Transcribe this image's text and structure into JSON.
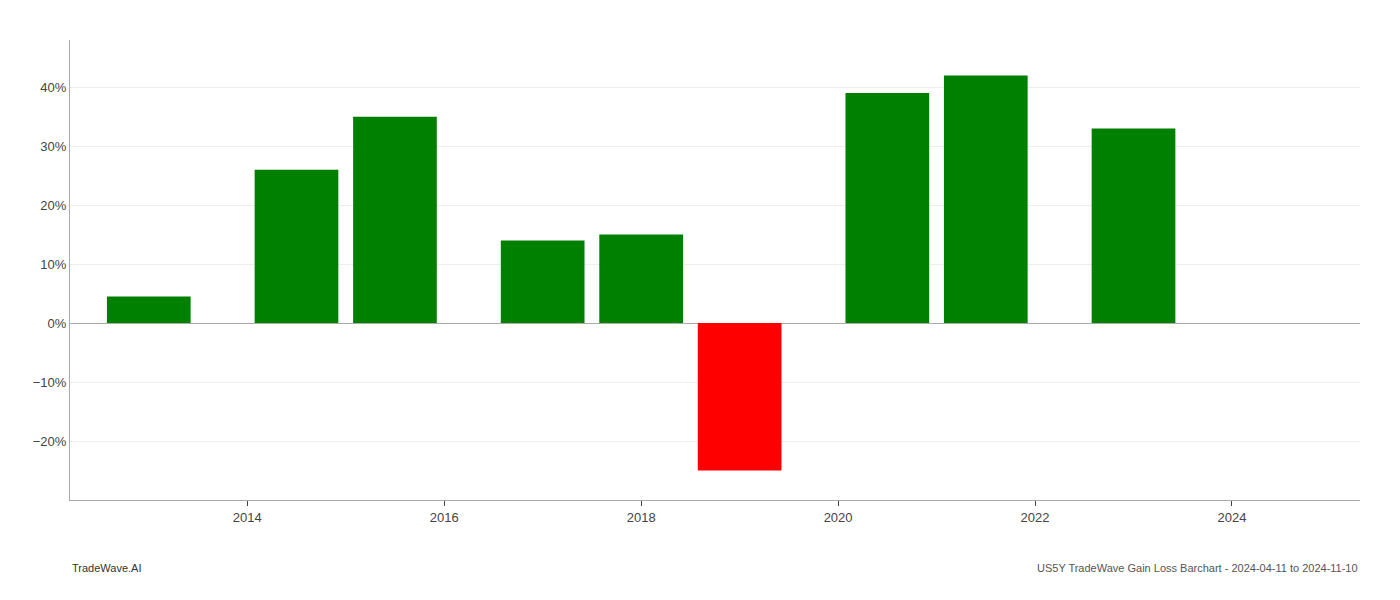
{
  "chart_data": {
    "type": "bar",
    "x": [
      2013,
      2014.5,
      2015.5,
      2017,
      2018,
      2019,
      2020.5,
      2021.5,
      2023
    ],
    "values": [
      4.5,
      26.0,
      35.0,
      14.0,
      15.0,
      -25.0,
      39.0,
      42.0,
      33.0
    ],
    "colors": [
      "#008000",
      "#008000",
      "#008000",
      "#008000",
      "#008000",
      "#ff0000",
      "#008000",
      "#008000",
      "#008000"
    ],
    "xlim": [
      2012.2,
      2025.3
    ],
    "xticks": [
      2014,
      2016,
      2018,
      2020,
      2022,
      2024
    ],
    "ylim": [
      -30,
      48
    ],
    "yticks": [
      {
        "value": -20,
        "label": "−20%"
      },
      {
        "value": -10,
        "label": "−10%"
      },
      {
        "value": 0,
        "label": "0%"
      },
      {
        "value": 10,
        "label": "10%"
      },
      {
        "value": 20,
        "label": "20%"
      },
      {
        "value": 30,
        "label": "30%"
      },
      {
        "value": 40,
        "label": "40%"
      }
    ],
    "grid": true,
    "annotations": [
      "TradeWave.AI",
      "US5Y TradeWave Gain Loss Barchart - 2024-04-11 to 2024-11-10"
    ]
  }
}
